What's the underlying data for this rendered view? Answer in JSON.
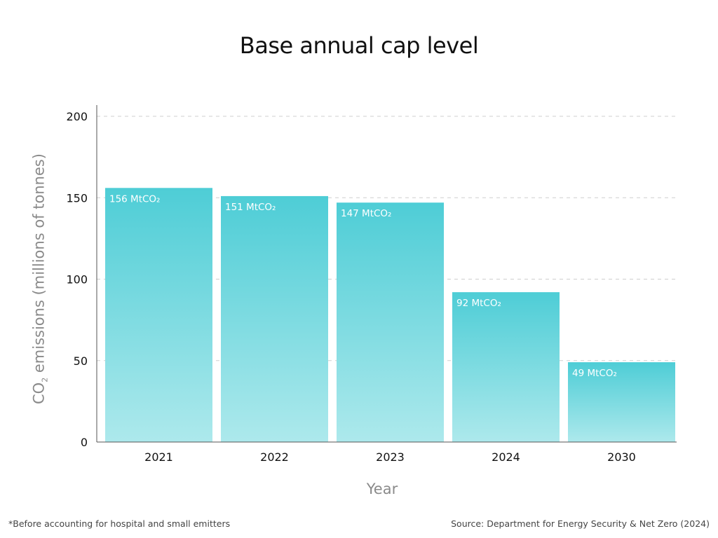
{
  "chart_data": {
    "type": "bar",
    "title": "Base annual cap level",
    "categories": [
      "2021",
      "2022",
      "2023",
      "2024",
      "2030"
    ],
    "values": [
      156,
      151,
      147,
      92,
      49
    ],
    "data_labels": [
      "156 MtCO₂",
      "151 MtCO₂",
      "147 MtCO₂",
      "92 MtCO₂",
      "49 MtCO₂"
    ],
    "xlabel": "Year",
    "ylabel_main": "CO",
    "ylabel_sub": "2",
    "ylabel_rest": " emissions (millions of tonnes)",
    "ylim": [
      0,
      200
    ],
    "yticks": [
      0,
      50,
      100,
      150,
      200
    ],
    "grid": "horizontal dashed",
    "bar_color_top": "#4ecdd6",
    "bar_color_bottom": "#ade9ec"
  },
  "footnote": "*Before accounting for hospital and small emitters",
  "source": "Source: Department for Energy Security & Net Zero (2024)"
}
